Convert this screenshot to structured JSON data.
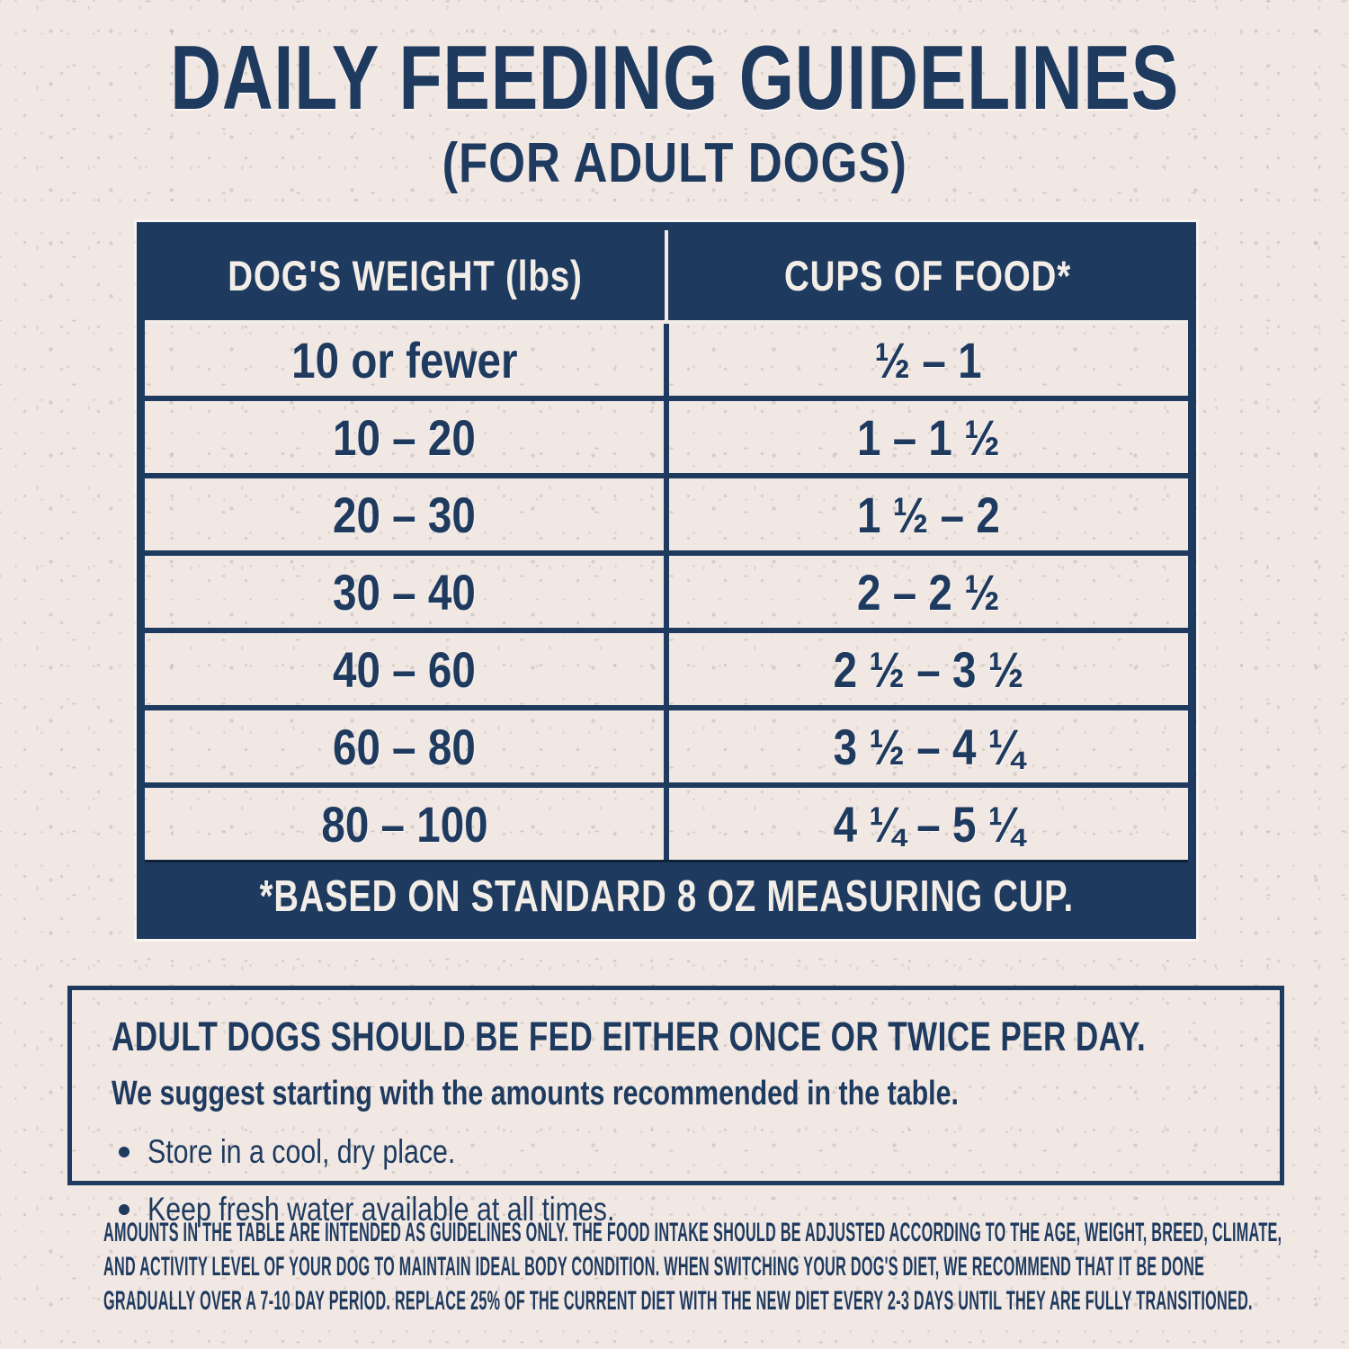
{
  "title": "DAILY FEEDING GUIDELINES",
  "subtitle": "(FOR ADULT DOGS)",
  "colors": {
    "navy": "#1e3a5f",
    "paper": "#f1e8e3",
    "header_text": "#f3ede8"
  },
  "table": {
    "headers": [
      "DOG'S WEIGHT (lbs)",
      "CUPS OF FOOD*"
    ],
    "rows": [
      [
        "10 or fewer",
        "½ – 1"
      ],
      [
        "10 – 20",
        "1 – 1 ½"
      ],
      [
        "20 – 30",
        "1 ½ – 2"
      ],
      [
        "30 – 40",
        "2 – 2 ½"
      ],
      [
        "40 – 60",
        "2 ½ – 3 ½"
      ],
      [
        "60 – 80",
        "3 ½ – 4 ¼"
      ],
      [
        "80 – 100",
        "4 ¼ – 5 ¼"
      ]
    ],
    "footnote": "*BASED ON STANDARD 8 OZ MEASURING CUP."
  },
  "note_box": {
    "heading": "ADULT DOGS SHOULD BE FED EITHER ONCE OR TWICE PER DAY.",
    "subheading": "We suggest starting with the amounts recommended in the table.",
    "bullets": [
      "Store in a cool, dry place.",
      "Keep fresh water available at all times."
    ]
  },
  "fine_print": {
    "lines": [
      "AMOUNTS IN THE TABLE ARE INTENDED AS GUIDELINES ONLY. THE FOOD INTAKE SHOULD BE ADJUSTED ACCORDING TO THE AGE, WEIGHT, BREED, CLIMATE,",
      "AND ACTIVITY LEVEL OF YOUR DOG TO MAINTAIN IDEAL BODY CONDITION. WHEN SWITCHING YOUR DOG'S DIET, WE RECOMMEND THAT IT BE DONE",
      "GRADUALLY OVER A 7-10 DAY PERIOD. REPLACE 25% OF THE CURRENT DIET WITH THE NEW DIET EVERY 2-3 DAYS UNTIL THEY ARE FULLY TRANSITIONED."
    ]
  }
}
